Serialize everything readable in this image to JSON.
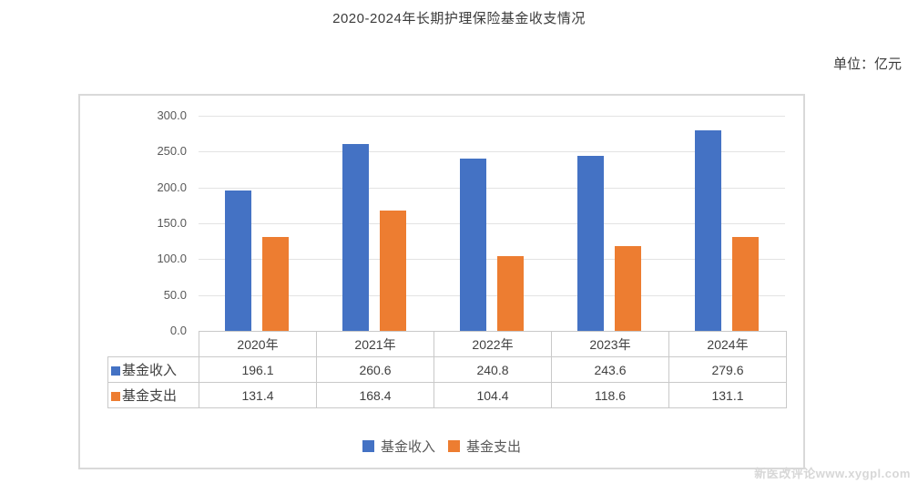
{
  "page": {
    "title": "2020-2024年长期护理保险基金收支情况",
    "unit_label": "单位：亿元",
    "watermark": "新医改评论www.xygpl.com"
  },
  "chart_data": {
    "type": "bar",
    "title": "2020-2024年长期护理保险基金收支情况",
    "unit": "亿元",
    "categories": [
      "2020年",
      "2021年",
      "2022年",
      "2023年",
      "2024年"
    ],
    "series": [
      {
        "name": "基金收入",
        "color": "#4472C4",
        "values": [
          196.1,
          260.6,
          240.8,
          243.6,
          279.6
        ]
      },
      {
        "name": "基金支出",
        "color": "#ED7D31",
        "values": [
          131.4,
          168.4,
          104.4,
          118.6,
          131.1
        ]
      }
    ],
    "ylim": [
      0,
      300
    ],
    "ytick_step": 50,
    "ytick_labels": [
      "300.0",
      "250.0",
      "200.0",
      "150.0",
      "100.0",
      "50.0",
      "0.0"
    ],
    "grid": true,
    "legend_position": "bottom",
    "data_table_shown": true
  }
}
